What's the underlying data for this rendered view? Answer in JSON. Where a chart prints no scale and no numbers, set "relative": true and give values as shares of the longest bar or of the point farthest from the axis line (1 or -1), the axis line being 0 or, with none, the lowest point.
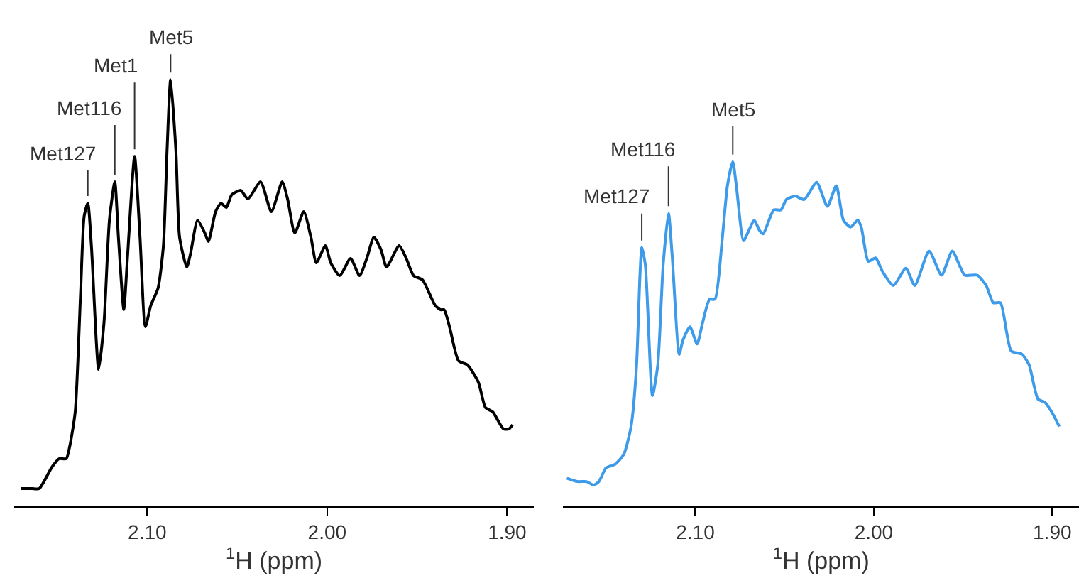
{
  "chart_data": [
    {
      "type": "line",
      "relative": true,
      "xlabel": "$^{1}$H (ppm)",
      "xlim": [
        2.174,
        1.885
      ],
      "xticks": [
        {
          "value": 2.1,
          "label": "2.10"
        },
        {
          "value": 2.0,
          "label": "2.00"
        },
        {
          "value": 1.9,
          "label": "1.90"
        }
      ],
      "marker": "none",
      "line_style": "solid",
      "annotations": [
        {
          "text": "Met127",
          "x": 2.133,
          "y": 0.71
        },
        {
          "text": "Met116",
          "x": 2.118,
          "y": 0.76
        },
        {
          "text": "Met1",
          "x": 2.107,
          "y": 0.82
        },
        {
          "text": "Met5",
          "x": 2.087,
          "y": 1.0
        }
      ],
      "series": [
        {
          "color": "#000000",
          "x": [
            2.17,
            2.164,
            2.16,
            2.153,
            2.149,
            2.145,
            2.143,
            2.14,
            2.137,
            2.135,
            2.133,
            2.131,
            2.127,
            2.124,
            2.121,
            2.118,
            2.116,
            2.113,
            2.111,
            2.107,
            2.104,
            2.101,
            2.098,
            2.094,
            2.091,
            2.089,
            2.087,
            2.084,
            2.082,
            2.078,
            2.076,
            2.072,
            2.068,
            2.066,
            2.062,
            2.059,
            2.056,
            2.053,
            2.048,
            2.044,
            2.037,
            2.031,
            2.025,
            2.022,
            2.018,
            2.013,
            2.009,
            2.006,
            2.001,
            1.998,
            1.993,
            1.987,
            1.982,
            1.978,
            1.974,
            1.97,
            1.967,
            1.96,
            1.956,
            1.952,
            1.947,
            1.94,
            1.937,
            1.935,
            1.932,
            1.927,
            1.922,
            1.916,
            1.912,
            1.908,
            1.902,
            1.899,
            1.897
          ],
          "values": [
            0.04,
            0.04,
            0.04,
            0.09,
            0.11,
            0.11,
            0.14,
            0.22,
            0.5,
            0.68,
            0.71,
            0.61,
            0.32,
            0.43,
            0.67,
            0.76,
            0.63,
            0.46,
            0.58,
            0.82,
            0.63,
            0.42,
            0.47,
            0.51,
            0.61,
            0.83,
            1.0,
            0.83,
            0.63,
            0.56,
            0.59,
            0.67,
            0.64,
            0.62,
            0.69,
            0.71,
            0.7,
            0.73,
            0.74,
            0.72,
            0.76,
            0.69,
            0.76,
            0.72,
            0.64,
            0.69,
            0.63,
            0.57,
            0.61,
            0.57,
            0.54,
            0.58,
            0.54,
            0.58,
            0.63,
            0.6,
            0.56,
            0.61,
            0.58,
            0.54,
            0.53,
            0.47,
            0.46,
            0.46,
            0.42,
            0.34,
            0.33,
            0.29,
            0.23,
            0.22,
            0.18,
            0.18,
            0.19
          ]
        }
      ]
    },
    {
      "type": "line",
      "relative": true,
      "xlabel": "$^{1}$H (ppm)",
      "xlim": [
        2.174,
        1.885
      ],
      "xticks": [
        {
          "value": 2.1,
          "label": "2.10"
        },
        {
          "value": 2.0,
          "label": "2.00"
        },
        {
          "value": 1.9,
          "label": "1.90"
        }
      ],
      "marker": "none",
      "line_style": "solid",
      "annotations": [
        {
          "text": "Met127",
          "x": 2.13,
          "y": 0.75
        },
        {
          "text": "Met116",
          "x": 2.115,
          "y": 0.85
        },
        {
          "text": "Met5",
          "x": 2.079,
          "y": 1.0
        }
      ],
      "series": [
        {
          "color": "#3d9be9",
          "x": [
            2.172,
            2.166,
            2.161,
            2.157,
            2.154,
            2.15,
            2.145,
            2.14,
            2.136,
            2.133,
            2.131,
            2.13,
            2.128,
            2.124,
            2.121,
            2.118,
            2.115,
            2.113,
            2.109,
            2.107,
            2.103,
            2.099,
            2.096,
            2.092,
            2.089,
            2.085,
            2.082,
            2.079,
            2.077,
            2.073,
            2.07,
            2.067,
            2.064,
            2.062,
            2.056,
            2.052,
            2.049,
            2.044,
            2.039,
            2.032,
            2.026,
            2.021,
            2.017,
            2.013,
            2.009,
            2.007,
            2.003,
            1.999,
            1.995,
            1.989,
            1.982,
            1.977,
            1.969,
            1.962,
            1.956,
            1.949,
            1.942,
            1.937,
            1.933,
            1.929,
            1.923,
            1.917,
            1.913,
            1.908,
            1.904,
            1.9,
            1.896
          ],
          "values": [
            0.08,
            0.07,
            0.07,
            0.06,
            0.07,
            0.11,
            0.12,
            0.15,
            0.23,
            0.4,
            0.67,
            0.75,
            0.7,
            0.32,
            0.41,
            0.7,
            0.85,
            0.73,
            0.44,
            0.48,
            0.52,
            0.47,
            0.53,
            0.6,
            0.6,
            0.77,
            0.93,
            1.0,
            0.93,
            0.77,
            0.8,
            0.83,
            0.8,
            0.79,
            0.86,
            0.86,
            0.89,
            0.9,
            0.89,
            0.94,
            0.87,
            0.93,
            0.83,
            0.81,
            0.83,
            0.81,
            0.71,
            0.72,
            0.68,
            0.64,
            0.69,
            0.64,
            0.74,
            0.67,
            0.74,
            0.67,
            0.67,
            0.64,
            0.59,
            0.59,
            0.45,
            0.44,
            0.41,
            0.31,
            0.3,
            0.27,
            0.23
          ]
        }
      ]
    }
  ]
}
